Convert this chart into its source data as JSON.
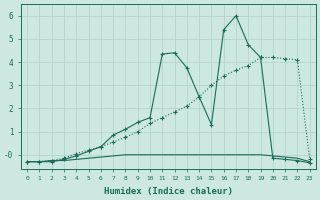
{
  "xlabel": "Humidex (Indice chaleur)",
  "background_color": "#cce8e0",
  "line_color": "#1a6b5a",
  "grid_color": "#b0d0c8",
  "xlim": [
    -0.5,
    23.5
  ],
  "ylim": [
    -0.6,
    6.5
  ],
  "xticks": [
    0,
    1,
    2,
    3,
    4,
    5,
    6,
    7,
    8,
    9,
    10,
    11,
    12,
    13,
    14,
    15,
    16,
    17,
    18,
    19,
    20,
    21,
    22,
    23
  ],
  "yticks": [
    0,
    1,
    2,
    3,
    4,
    5,
    6
  ],
  "ytick_labels": [
    "-0",
    "1",
    "2",
    "3",
    "4",
    "5",
    "6"
  ],
  "series1_x": [
    0,
    1,
    2,
    3,
    4,
    5,
    6,
    7,
    8,
    9,
    10,
    11,
    12,
    13,
    14,
    15,
    16,
    17,
    18,
    19,
    20,
    21,
    22,
    23
  ],
  "series1_y": [
    -0.3,
    -0.3,
    -0.25,
    -0.25,
    -0.2,
    -0.15,
    -0.1,
    -0.05,
    0.0,
    0.0,
    0.0,
    0.0,
    0.0,
    0.0,
    0.0,
    0.0,
    0.0,
    0.0,
    0.0,
    0.0,
    -0.05,
    -0.1,
    -0.15,
    -0.3
  ],
  "series2_x": [
    0,
    1,
    2,
    3,
    4,
    5,
    6,
    7,
    8,
    9,
    10,
    11,
    12,
    13,
    14,
    15,
    16,
    17,
    18,
    19,
    20,
    21,
    22,
    23
  ],
  "series2_y": [
    -0.3,
    -0.3,
    -0.25,
    -0.15,
    0.05,
    0.2,
    0.35,
    0.55,
    0.75,
    1.0,
    1.35,
    1.6,
    1.85,
    2.1,
    2.5,
    3.0,
    3.4,
    3.65,
    3.85,
    4.2,
    4.2,
    4.15,
    4.1,
    -0.2
  ],
  "series3_x": [
    0,
    1,
    2,
    3,
    4,
    5,
    6,
    7,
    8,
    9,
    10,
    11,
    12,
    13,
    14,
    15,
    16,
    17,
    18,
    19,
    20,
    21,
    22,
    23
  ],
  "series3_y": [
    -0.3,
    -0.3,
    -0.3,
    -0.2,
    -0.05,
    0.15,
    0.35,
    0.85,
    1.1,
    1.4,
    1.6,
    4.35,
    4.4,
    3.75,
    2.5,
    1.3,
    5.4,
    6.0,
    4.75,
    4.2,
    -0.15,
    -0.2,
    -0.25,
    -0.35
  ]
}
